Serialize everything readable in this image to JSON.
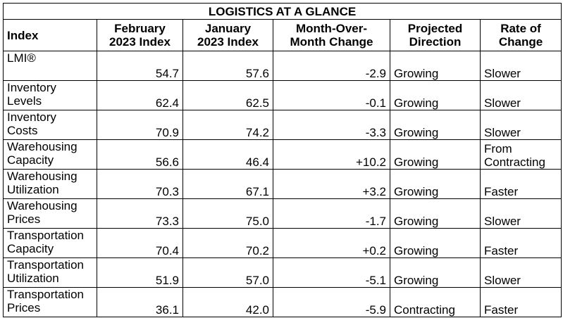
{
  "table": {
    "title": "LOGISTICS AT A GLANCE",
    "headers": [
      [
        "Index"
      ],
      [
        "February",
        "2023 Index"
      ],
      [
        "January",
        "2023 Index"
      ],
      [
        "Month-Over-",
        "Month Change"
      ],
      [
        "Projected",
        "Direction"
      ],
      [
        "Rate of",
        "Change"
      ]
    ],
    "rows": [
      {
        "name": [
          "LMI®"
        ],
        "feb": "54.7",
        "jan": "57.6",
        "change": "-2.9",
        "direction": "Growing",
        "rate": [
          "Slower"
        ]
      },
      {
        "name": [
          "Inventory",
          "Levels"
        ],
        "feb": "62.4",
        "jan": "62.5",
        "change": "-0.1",
        "direction": "Growing",
        "rate": [
          "Slower"
        ]
      },
      {
        "name": [
          "Inventory",
          "Costs"
        ],
        "feb": "70.9",
        "jan": "74.2",
        "change": "-3.3",
        "direction": "Growing",
        "rate": [
          "Slower"
        ]
      },
      {
        "name": [
          "Warehousing",
          "Capacity"
        ],
        "feb": "56.6",
        "jan": "46.4",
        "change": "+10.2",
        "direction": "Growing",
        "rate": [
          "From",
          "Contracting"
        ]
      },
      {
        "name": [
          "Warehousing",
          "Utilization"
        ],
        "feb": "70.3",
        "jan": "67.1",
        "change": "+3.2",
        "direction": "Growing",
        "rate": [
          "Faster"
        ]
      },
      {
        "name": [
          "Warehousing",
          "Prices"
        ],
        "feb": "73.3",
        "jan": "75.0",
        "change": "-1.7",
        "direction": "Growing",
        "rate": [
          "Slower"
        ]
      },
      {
        "name": [
          "Transportation",
          "Capacity"
        ],
        "feb": "70.4",
        "jan": "70.2",
        "change": "+0.2",
        "direction": "Growing",
        "rate": [
          "Faster"
        ]
      },
      {
        "name": [
          "Transportation",
          "Utilization"
        ],
        "feb": "51.9",
        "jan": "57.0",
        "change": "-5.1",
        "direction": "Growing",
        "rate": [
          "Slower"
        ]
      },
      {
        "name": [
          "Transportation",
          "Prices"
        ],
        "feb": "36.1",
        "jan": "42.0",
        "change": "-5.9",
        "direction": "Contracting",
        "rate": [
          "Faster"
        ]
      }
    ]
  },
  "chart_data": {
    "type": "table",
    "title": "LOGISTICS AT A GLANCE",
    "columns": [
      "Index",
      "February 2023 Index",
      "January 2023 Index",
      "Month-Over-Month Change",
      "Projected Direction",
      "Rate of Change"
    ],
    "rows": [
      [
        "LMI®",
        54.7,
        57.6,
        -2.9,
        "Growing",
        "Slower"
      ],
      [
        "Inventory Levels",
        62.4,
        62.5,
        -0.1,
        "Growing",
        "Slower"
      ],
      [
        "Inventory Costs",
        70.9,
        74.2,
        -3.3,
        "Growing",
        "Slower"
      ],
      [
        "Warehousing Capacity",
        56.6,
        46.4,
        10.2,
        "Growing",
        "From Contracting"
      ],
      [
        "Warehousing Utilization",
        70.3,
        67.1,
        3.2,
        "Growing",
        "Faster"
      ],
      [
        "Warehousing Prices",
        73.3,
        75.0,
        -1.7,
        "Growing",
        "Slower"
      ],
      [
        "Transportation Capacity",
        70.4,
        70.2,
        0.2,
        "Growing",
        "Faster"
      ],
      [
        "Transportation Utilization",
        51.9,
        57.0,
        -5.1,
        "Growing",
        "Slower"
      ],
      [
        "Transportation Prices",
        36.1,
        42.0,
        -5.9,
        "Contracting",
        "Faster"
      ]
    ]
  }
}
